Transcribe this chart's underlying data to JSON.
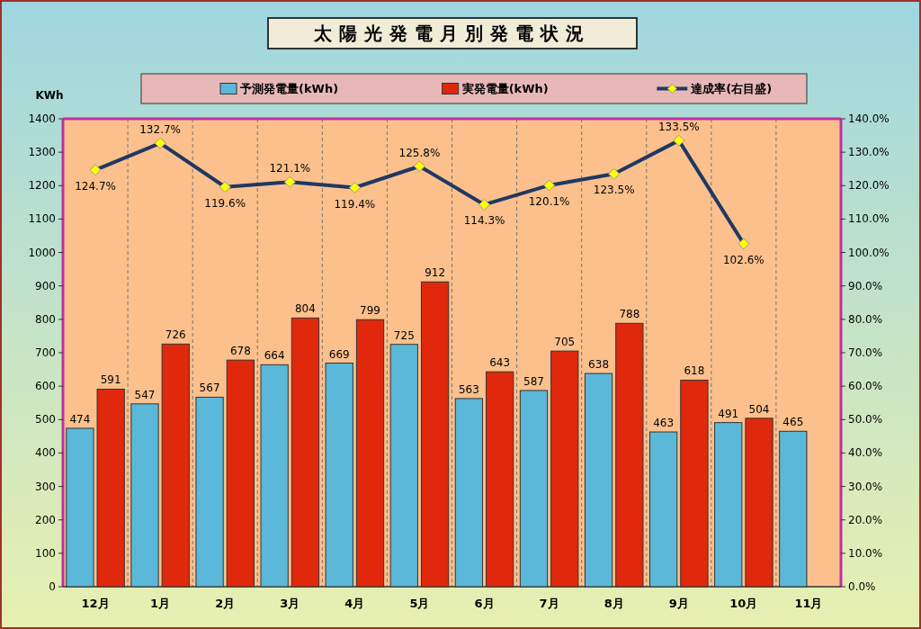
{
  "chart_data": {
    "type": "bar",
    "title": "太陽光発電月別発電状況",
    "ylabel": "KWh",
    "categories": [
      "12月",
      "1月",
      "2月",
      "3月",
      "4月",
      "5月",
      "6月",
      "7月",
      "8月",
      "9月",
      "10月",
      "11月"
    ],
    "series": [
      {
        "name": "予測発電量(kWh)",
        "color": "#5bb8d8",
        "values": [
          474,
          547,
          567,
          664,
          669,
          725,
          563,
          587,
          638,
          463,
          491,
          465
        ]
      },
      {
        "name": "実発電量(kWh)",
        "color": "#e0280c",
        "values": [
          591,
          726,
          678,
          804,
          799,
          912,
          643,
          705,
          788,
          618,
          504,
          null
        ]
      },
      {
        "name": "達成率(右目盛)",
        "type": "line",
        "axis": "y2",
        "color": "#1f3864",
        "marker": "diamond",
        "values": [
          124.7,
          132.7,
          119.6,
          121.1,
          119.4,
          125.8,
          114.3,
          120.1,
          123.5,
          133.5,
          102.6,
          null
        ],
        "value_labels": [
          "124.7%",
          "132.7%",
          "119.6%",
          "121.1%",
          "119.4%",
          "125.8%",
          "114.3%",
          "120.1%",
          "123.5%",
          "133.5%",
          "102.6%",
          null
        ]
      }
    ],
    "data_labels": true,
    "grid": "x",
    "legend": "top",
    "ylim": [
      0,
      1400
    ],
    "yticks": [
      0,
      100,
      200,
      300,
      400,
      500,
      600,
      700,
      800,
      900,
      1000,
      1100,
      1200,
      1300,
      1400
    ],
    "y2lim": [
      0,
      140
    ],
    "y2ticks": [
      {
        "value": 0,
        "label": "0.0%"
      },
      {
        "value": 10,
        "label": "10.0%"
      },
      {
        "value": 20,
        "label": "20.0%"
      },
      {
        "value": 30,
        "label": "30.0%"
      },
      {
        "value": 40,
        "label": "40.0%"
      },
      {
        "value": 50,
        "label": "50.0%"
      },
      {
        "value": 60,
        "label": "60.0%"
      },
      {
        "value": 70,
        "label": "70.0%"
      },
      {
        "value": 80,
        "label": "80.0%"
      },
      {
        "value": 90,
        "label": "90.0%"
      },
      {
        "value": 100,
        "label": "100.0%"
      },
      {
        "value": 110,
        "label": "110.0%"
      },
      {
        "value": 120,
        "label": "120.0%"
      },
      {
        "value": 130,
        "label": "130.0%"
      },
      {
        "value": 140,
        "label": "140.0%"
      }
    ]
  }
}
